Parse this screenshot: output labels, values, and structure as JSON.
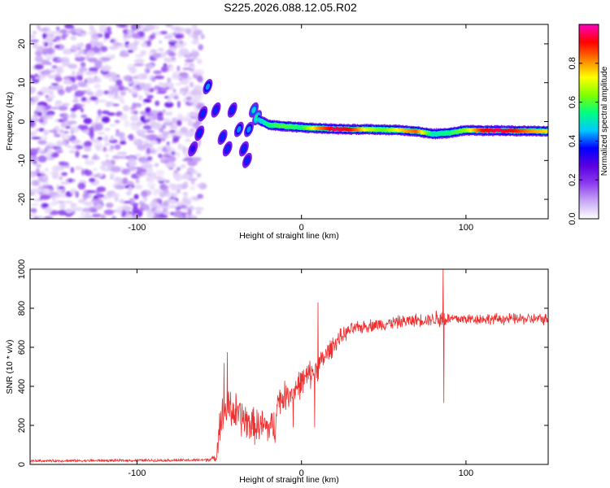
{
  "figure_title": "S225.2026.088.12.05.R02",
  "colors": {
    "snr_line": "#f03030",
    "frame": "#000000",
    "colormap": [
      "#ffffff",
      "#c8a8f4",
      "#8c3cf0",
      "#5a00e0",
      "#0000ff",
      "#00c8ff",
      "#00ff80",
      "#80ff00",
      "#ffff00",
      "#ff8000",
      "#ff0000",
      "#ff00c0"
    ]
  },
  "chart_data": [
    {
      "type": "heatmap",
      "name": "spectrogram",
      "xlabel": "Height of straight line (km)",
      "ylabel": "Frequency (Hz)",
      "xlim": [
        -165,
        150
      ],
      "ylim": [
        -25,
        25
      ],
      "xticks": [
        -100,
        0,
        100
      ],
      "xtick_labels": [
        "-100",
        "0",
        "100"
      ],
      "yticks": [
        20,
        10,
        0,
        -10,
        -20
      ],
      "ytick_labels": [
        "20",
        "10",
        "0",
        "-10",
        "-20"
      ],
      "noise_region_x": [
        -165,
        -63
      ],
      "signal_blobs": [
        {
          "x": -57,
          "y": 9,
          "amp": 0.35
        },
        {
          "x": -60,
          "y": 2,
          "amp": 0.3
        },
        {
          "x": -62,
          "y": -3,
          "amp": 0.3
        },
        {
          "x": -66,
          "y": -7,
          "amp": 0.25
        },
        {
          "x": -52,
          "y": 3,
          "amp": 0.3
        },
        {
          "x": -48,
          "y": -4,
          "amp": 0.3
        },
        {
          "x": -45,
          "y": -7,
          "amp": 0.3
        },
        {
          "x": -42,
          "y": 3,
          "amp": 0.3
        },
        {
          "x": -38,
          "y": -2,
          "amp": 0.35
        },
        {
          "x": -35,
          "y": -7,
          "amp": 0.3
        },
        {
          "x": -33,
          "y": -10,
          "amp": 0.3
        },
        {
          "x": -29,
          "y": 3,
          "amp": 0.4
        },
        {
          "x": -32,
          "y": -2,
          "amp": 0.35
        },
        {
          "x": -27,
          "y": 1,
          "amp": 0.45
        }
      ],
      "ridge": {
        "x": [
          -26,
          -20,
          -10,
          0,
          10,
          20,
          30,
          40,
          50,
          60,
          70,
          80,
          90,
          100,
          110,
          120,
          130,
          140,
          150
        ],
        "y": [
          0.5,
          -0.8,
          -1.2,
          -1.5,
          -1.7,
          -1.9,
          -2.0,
          -2.0,
          -2.1,
          -2.2,
          -2.5,
          -3.2,
          -2.9,
          -2.2,
          -2.3,
          -2.3,
          -2.4,
          -2.4,
          -2.5
        ],
        "amplitude": [
          0.45,
          0.55,
          0.6,
          0.55,
          0.8,
          0.95,
          0.9,
          0.7,
          0.6,
          0.75,
          0.85,
          0.5,
          0.55,
          0.65,
          0.9,
          0.95,
          0.9,
          0.8,
          0.75
        ]
      }
    },
    {
      "type": "colorbar",
      "name": "amplitude-colorbar",
      "label": "Normalized spectral amplitude",
      "range": [
        0.0,
        1.0
      ],
      "ticks": [
        0.0,
        0.2,
        0.4,
        0.6,
        0.8
      ],
      "tick_labels": [
        "0.0",
        "0.2",
        "0.4",
        "0.6",
        "0.8"
      ]
    },
    {
      "type": "line",
      "name": "snr",
      "xlabel": "Height of straight line (km)",
      "ylabel": "SNR (10 * v/v)",
      "xlim": [
        -165,
        150
      ],
      "ylim": [
        0,
        1000
      ],
      "xticks": [
        -100,
        0,
        100
      ],
      "xtick_labels": [
        "-100",
        "0",
        "100"
      ],
      "yticks": [
        0,
        200,
        400,
        600,
        800,
        1000
      ],
      "ytick_labels": [
        "0",
        "200",
        "400",
        "600",
        "800",
        "1000"
      ],
      "trend": {
        "x": [
          -165,
          -60,
          -52,
          -50,
          -45,
          -40,
          -30,
          -20,
          -16,
          -15,
          -10,
          -5,
          0,
          5,
          10,
          15,
          20,
          25,
          30,
          40,
          50,
          60,
          70,
          80,
          84,
          86,
          88,
          100,
          120,
          140,
          150
        ],
        "y": [
          18,
          22,
          30,
          200,
          300,
          260,
          200,
          190,
          190,
          320,
          350,
          380,
          420,
          460,
          500,
          560,
          620,
          660,
          690,
          710,
          720,
          730,
          740,
          745,
          750,
          750,
          745,
          745,
          745,
          745,
          745
        ],
        "spread": [
          8,
          8,
          20,
          120,
          140,
          130,
          110,
          110,
          110,
          90,
          90,
          90,
          90,
          90,
          80,
          70,
          60,
          50,
          40,
          40,
          40,
          40,
          40,
          40,
          80,
          80,
          40,
          35,
          35,
          35,
          35
        ]
      },
      "spikes": [
        {
          "x": 86,
          "y": 1000
        },
        {
          "x": 86.5,
          "y": 315
        },
        {
          "x": 10,
          "y": 830
        },
        {
          "x": 8,
          "y": 190
        },
        {
          "x": -5,
          "y": 190
        },
        {
          "x": -45,
          "y": 575
        },
        {
          "x": -47,
          "y": 520
        }
      ]
    }
  ]
}
